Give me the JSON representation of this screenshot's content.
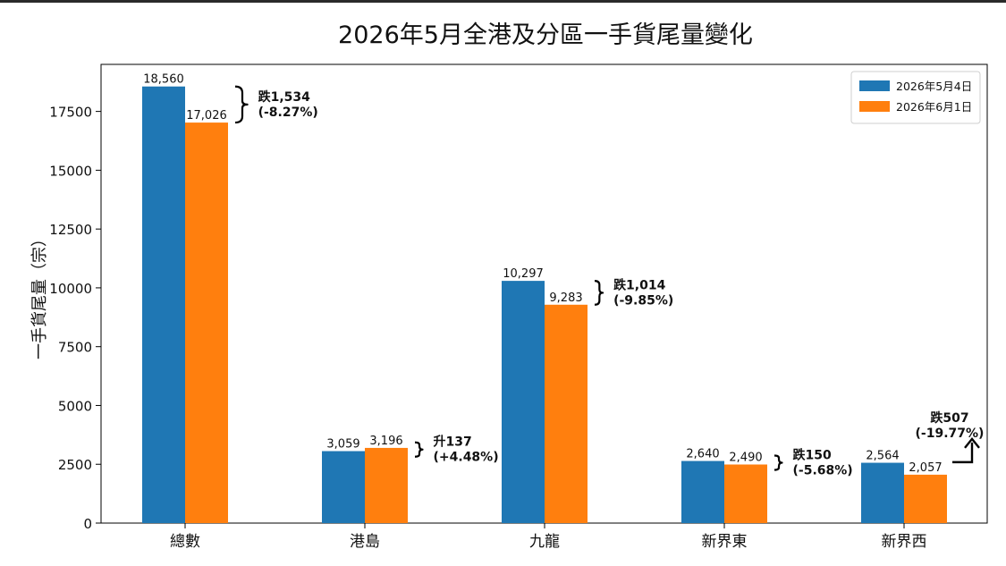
{
  "chart_data": {
    "type": "bar",
    "title": "2026年5月全港及分區一手貨尾量變化",
    "xlabel": "",
    "ylabel": "一手貨尾量（宗）",
    "categories": [
      "總數",
      "港島",
      "九龍",
      "新界東",
      "新界西"
    ],
    "series": [
      {
        "name": "2026年5月4日",
        "color": "#1f77b4",
        "values": [
          18560,
          3059,
          10297,
          2640,
          2564
        ],
        "labels": [
          "18,560",
          "3,059",
          "10,297",
          "2,640",
          "2,564"
        ]
      },
      {
        "name": "2026年6月1日",
        "color": "#ff7f0e",
        "values": [
          17026,
          3196,
          9283,
          2490,
          2057
        ],
        "labels": [
          "17,026",
          "3,196",
          "9,283",
          "2,490",
          "2,057"
        ]
      }
    ],
    "ylim": [
      0,
      19500
    ],
    "yticks": [
      0,
      2500,
      5000,
      7500,
      10000,
      12500,
      15000,
      17500
    ],
    "ytick_labels": [
      "0",
      "2500",
      "5000",
      "7500",
      "10000",
      "12500",
      "15000",
      "17500"
    ],
    "grid": false,
    "legend_position": "top-right",
    "annotations": [
      {
        "category": "總數",
        "line1": "跌1,534",
        "line2": "(-8.27%)",
        "marker": "brace"
      },
      {
        "category": "港島",
        "line1": "升137",
        "line2": "(+4.48%)",
        "marker": "brace"
      },
      {
        "category": "九龍",
        "line1": "跌1,014",
        "line2": "(-9.85%)",
        "marker": "brace"
      },
      {
        "category": "新界東",
        "line1": "跌150",
        "line2": "(-5.68%)",
        "marker": "brace"
      },
      {
        "category": "新界西",
        "line1": "跌507",
        "line2": "(-19.77%)",
        "marker": "arrow"
      }
    ]
  }
}
